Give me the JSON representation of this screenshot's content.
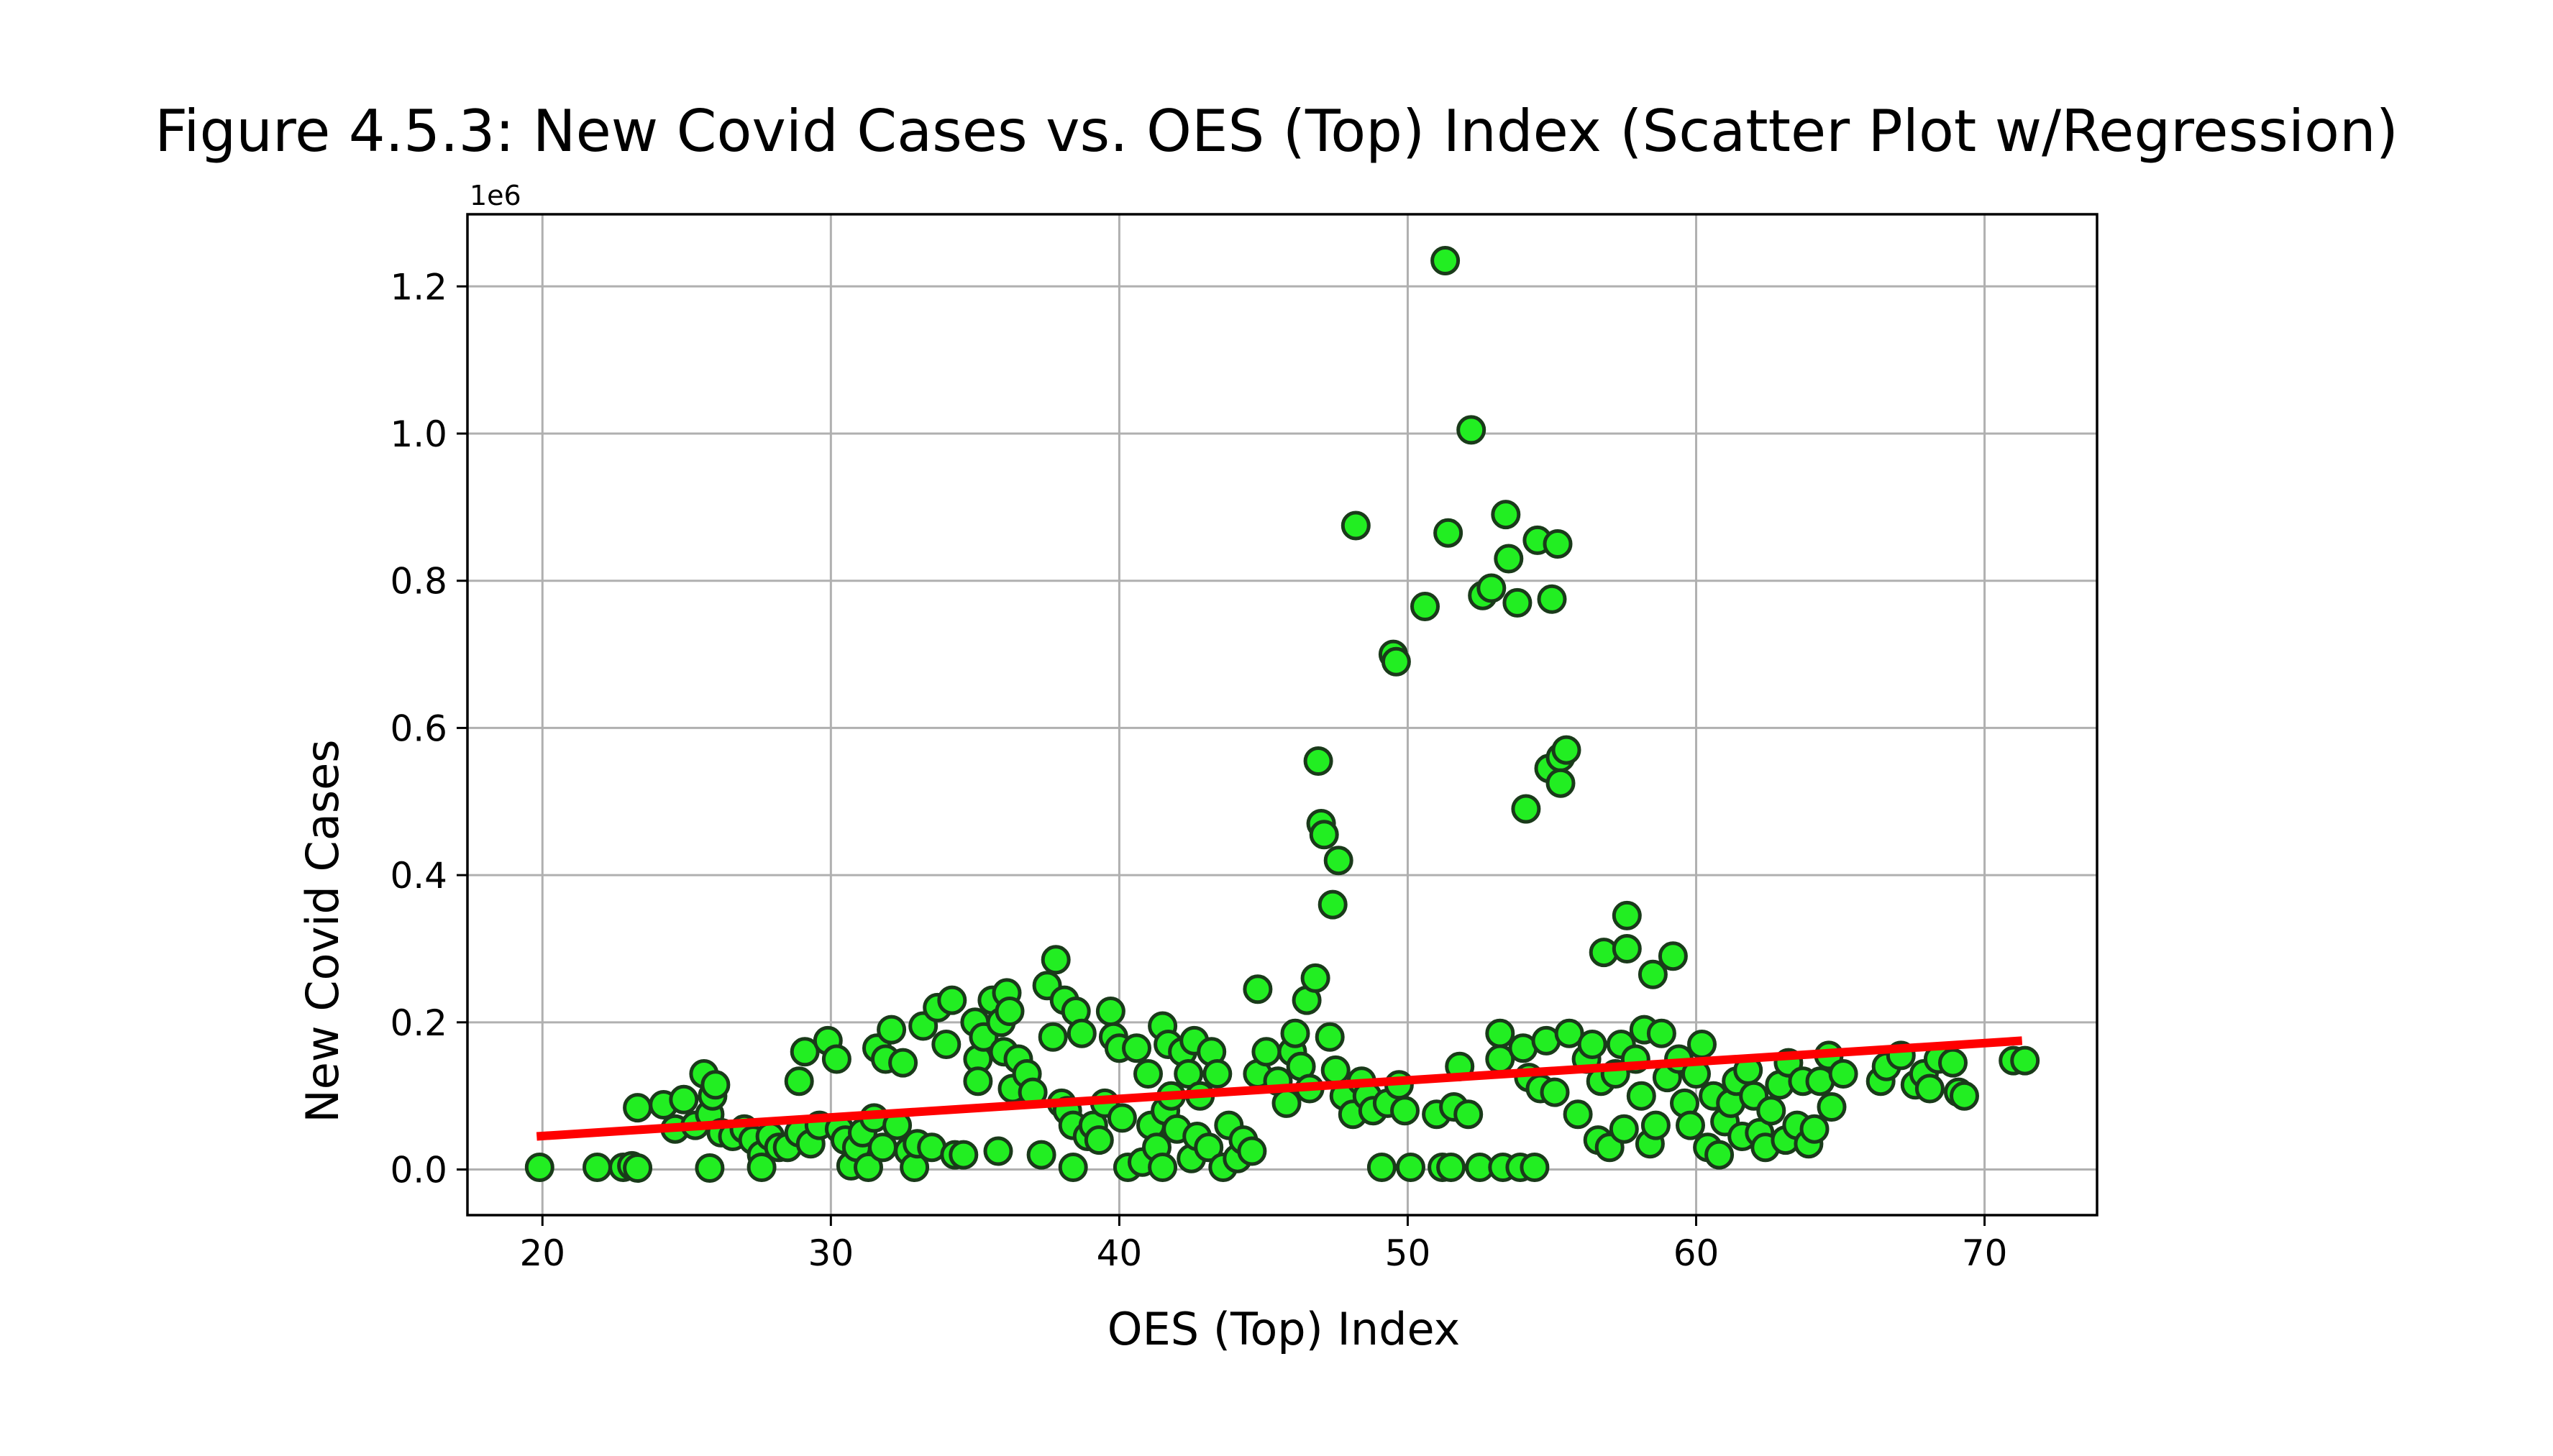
{
  "chart_data": {
    "type": "scatter",
    "title": "Figure 4.5.3: New Covid Cases vs. OES (Top) Index (Scatter Plot w/Regression)",
    "xlabel": "OES (Top) Index",
    "ylabel": "New Covid Cases",
    "y_offset_label": "1e6",
    "xlim": [
      17.4,
      73.9
    ],
    "ylim": [
      -62000,
      1298000
    ],
    "x_ticks": [
      20,
      30,
      40,
      50,
      60,
      70
    ],
    "x_tick_labels": [
      "20",
      "30",
      "40",
      "50",
      "60",
      "70"
    ],
    "y_ticks": [
      0,
      200000,
      400000,
      600000,
      800000,
      1000000,
      1200000
    ],
    "y_tick_labels": [
      "0.0",
      "0.2",
      "0.4",
      "0.6",
      "0.8",
      "1.0",
      "1.2"
    ],
    "grid": true,
    "colors": {
      "marker_fill": "#22ee22",
      "marker_edge": "#1a3a1a",
      "regression": "#ff0000"
    },
    "regression": {
      "x": [
        19.8,
        71.3
      ],
      "y": [
        45000,
        175000
      ]
    },
    "points": [
      [
        19.9,
        3000
      ],
      [
        21.9,
        3000
      ],
      [
        22.8,
        3000
      ],
      [
        23.1,
        5000
      ],
      [
        23.3,
        2000
      ],
      [
        23.3,
        84000
      ],
      [
        24.2,
        88000
      ],
      [
        24.6,
        55000
      ],
      [
        24.9,
        95000
      ],
      [
        25.3,
        60000
      ],
      [
        25.6,
        130000
      ],
      [
        25.8,
        2000
      ],
      [
        25.8,
        75000
      ],
      [
        25.9,
        100000
      ],
      [
        26.0,
        115000
      ],
      [
        26.2,
        50000
      ],
      [
        26.6,
        45000
      ],
      [
        27.0,
        55000
      ],
      [
        27.3,
        40000
      ],
      [
        27.6,
        20000
      ],
      [
        27.6,
        3000
      ],
      [
        27.9,
        45000
      ],
      [
        28.2,
        30000
      ],
      [
        28.5,
        30000
      ],
      [
        28.9,
        50000
      ],
      [
        28.9,
        120000
      ],
      [
        29.1,
        160000
      ],
      [
        29.3,
        35000
      ],
      [
        29.6,
        60000
      ],
      [
        29.9,
        175000
      ],
      [
        30.2,
        150000
      ],
      [
        30.3,
        55000
      ],
      [
        30.5,
        40000
      ],
      [
        30.7,
        5000
      ],
      [
        30.9,
        30000
      ],
      [
        31.1,
        50000
      ],
      [
        31.3,
        3000
      ],
      [
        31.5,
        70000
      ],
      [
        31.6,
        165000
      ],
      [
        31.8,
        30000
      ],
      [
        31.9,
        150000
      ],
      [
        32.1,
        190000
      ],
      [
        32.3,
        60000
      ],
      [
        32.5,
        145000
      ],
      [
        32.7,
        25000
      ],
      [
        32.9,
        3000
      ],
      [
        33.0,
        35000
      ],
      [
        33.2,
        195000
      ],
      [
        33.5,
        30000
      ],
      [
        33.7,
        220000
      ],
      [
        34.0,
        170000
      ],
      [
        34.2,
        230000
      ],
      [
        34.3,
        20000
      ],
      [
        34.6,
        20000
      ],
      [
        35.0,
        200000
      ],
      [
        35.1,
        150000
      ],
      [
        35.1,
        120000
      ],
      [
        35.3,
        180000
      ],
      [
        35.6,
        230000
      ],
      [
        35.8,
        25000
      ],
      [
        35.9,
        200000
      ],
      [
        36.0,
        160000
      ],
      [
        36.1,
        240000
      ],
      [
        36.2,
        215000
      ],
      [
        36.3,
        110000
      ],
      [
        36.5,
        150000
      ],
      [
        36.8,
        130000
      ],
      [
        37.0,
        105000
      ],
      [
        37.3,
        20000
      ],
      [
        37.5,
        250000
      ],
      [
        37.7,
        180000
      ],
      [
        37.8,
        285000
      ],
      [
        38.0,
        90000
      ],
      [
        38.1,
        230000
      ],
      [
        38.2,
        80000
      ],
      [
        38.4,
        60000
      ],
      [
        38.4,
        3000
      ],
      [
        38.5,
        215000
      ],
      [
        38.7,
        185000
      ],
      [
        38.9,
        45000
      ],
      [
        39.1,
        60000
      ],
      [
        39.3,
        40000
      ],
      [
        39.5,
        90000
      ],
      [
        39.7,
        215000
      ],
      [
        39.8,
        180000
      ],
      [
        40.0,
        165000
      ],
      [
        40.1,
        70000
      ],
      [
        40.3,
        3000
      ],
      [
        40.6,
        165000
      ],
      [
        40.8,
        10000
      ],
      [
        41.0,
        130000
      ],
      [
        41.1,
        60000
      ],
      [
        41.3,
        30000
      ],
      [
        41.5,
        195000
      ],
      [
        41.5,
        3000
      ],
      [
        41.6,
        80000
      ],
      [
        41.7,
        170000
      ],
      [
        41.8,
        100000
      ],
      [
        42.0,
        55000
      ],
      [
        42.2,
        160000
      ],
      [
        42.4,
        130000
      ],
      [
        42.5,
        15000
      ],
      [
        42.6,
        175000
      ],
      [
        42.7,
        45000
      ],
      [
        42.8,
        100000
      ],
      [
        43.1,
        30000
      ],
      [
        43.2,
        160000
      ],
      [
        43.4,
        130000
      ],
      [
        43.6,
        3000
      ],
      [
        43.8,
        60000
      ],
      [
        44.1,
        15000
      ],
      [
        44.3,
        40000
      ],
      [
        44.6,
        25000
      ],
      [
        44.8,
        130000
      ],
      [
        44.8,
        245000
      ],
      [
        45.1,
        160000
      ],
      [
        45.5,
        120000
      ],
      [
        45.8,
        90000
      ],
      [
        46.0,
        160000
      ],
      [
        46.1,
        185000
      ],
      [
        46.3,
        140000
      ],
      [
        46.5,
        230000
      ],
      [
        46.6,
        110000
      ],
      [
        46.8,
        260000
      ],
      [
        46.9,
        555000
      ],
      [
        47.0,
        470000
      ],
      [
        47.1,
        455000
      ],
      [
        47.3,
        180000
      ],
      [
        47.4,
        360000
      ],
      [
        47.5,
        135000
      ],
      [
        47.6,
        420000
      ],
      [
        47.8,
        100000
      ],
      [
        48.1,
        75000
      ],
      [
        48.2,
        875000
      ],
      [
        48.4,
        120000
      ],
      [
        48.6,
        100000
      ],
      [
        48.8,
        80000
      ],
      [
        49.1,
        3000
      ],
      [
        49.3,
        90000
      ],
      [
        49.5,
        700000
      ],
      [
        49.6,
        690000
      ],
      [
        49.7,
        115000
      ],
      [
        49.9,
        80000
      ],
      [
        50.1,
        3000
      ],
      [
        50.6,
        765000
      ],
      [
        51.0,
        75000
      ],
      [
        51.2,
        3000
      ],
      [
        51.3,
        1235000
      ],
      [
        51.4,
        865000
      ],
      [
        51.5,
        3000
      ],
      [
        51.6,
        85000
      ],
      [
        51.8,
        140000
      ],
      [
        52.1,
        75000
      ],
      [
        52.2,
        1005000
      ],
      [
        52.5,
        3000
      ],
      [
        52.6,
        780000
      ],
      [
        52.9,
        790000
      ],
      [
        53.2,
        185000
      ],
      [
        53.2,
        150000
      ],
      [
        53.3,
        3000
      ],
      [
        53.4,
        890000
      ],
      [
        53.5,
        830000
      ],
      [
        53.8,
        770000
      ],
      [
        53.9,
        3000
      ],
      [
        54.0,
        165000
      ],
      [
        54.1,
        490000
      ],
      [
        54.2,
        125000
      ],
      [
        54.4,
        3000
      ],
      [
        54.5,
        855000
      ],
      [
        54.6,
        110000
      ],
      [
        54.8,
        175000
      ],
      [
        54.9,
        545000
      ],
      [
        55.0,
        775000
      ],
      [
        55.1,
        105000
      ],
      [
        55.2,
        850000
      ],
      [
        55.3,
        560000
      ],
      [
        55.3,
        525000
      ],
      [
        55.5,
        570000
      ],
      [
        55.6,
        185000
      ],
      [
        55.9,
        75000
      ],
      [
        56.2,
        150000
      ],
      [
        56.4,
        170000
      ],
      [
        56.6,
        40000
      ],
      [
        56.7,
        120000
      ],
      [
        56.8,
        295000
      ],
      [
        57.0,
        30000
      ],
      [
        57.2,
        130000
      ],
      [
        57.4,
        170000
      ],
      [
        57.5,
        55000
      ],
      [
        57.6,
        345000
      ],
      [
        57.6,
        300000
      ],
      [
        57.9,
        150000
      ],
      [
        58.1,
        100000
      ],
      [
        58.2,
        190000
      ],
      [
        58.4,
        35000
      ],
      [
        58.5,
        265000
      ],
      [
        58.6,
        60000
      ],
      [
        58.8,
        185000
      ],
      [
        59.0,
        125000
      ],
      [
        59.2,
        290000
      ],
      [
        59.4,
        150000
      ],
      [
        59.6,
        90000
      ],
      [
        59.8,
        60000
      ],
      [
        60.0,
        130000
      ],
      [
        60.2,
        170000
      ],
      [
        60.4,
        30000
      ],
      [
        60.6,
        100000
      ],
      [
        60.8,
        20000
      ],
      [
        61.0,
        65000
      ],
      [
        61.2,
        90000
      ],
      [
        61.4,
        120000
      ],
      [
        61.6,
        45000
      ],
      [
        61.8,
        135000
      ],
      [
        62.0,
        100000
      ],
      [
        62.2,
        50000
      ],
      [
        62.4,
        30000
      ],
      [
        62.6,
        80000
      ],
      [
        62.9,
        115000
      ],
      [
        63.1,
        40000
      ],
      [
        63.2,
        145000
      ],
      [
        63.5,
        60000
      ],
      [
        63.7,
        120000
      ],
      [
        63.9,
        35000
      ],
      [
        64.1,
        55000
      ],
      [
        64.3,
        120000
      ],
      [
        64.6,
        155000
      ],
      [
        64.7,
        85000
      ],
      [
        65.1,
        130000
      ],
      [
        66.4,
        120000
      ],
      [
        66.6,
        140000
      ],
      [
        67.1,
        155000
      ],
      [
        67.6,
        115000
      ],
      [
        67.9,
        130000
      ],
      [
        68.1,
        110000
      ],
      [
        68.4,
        150000
      ],
      [
        68.9,
        145000
      ],
      [
        69.1,
        105000
      ],
      [
        69.3,
        100000
      ],
      [
        71.0,
        148000
      ],
      [
        71.4,
        148000
      ]
    ]
  }
}
